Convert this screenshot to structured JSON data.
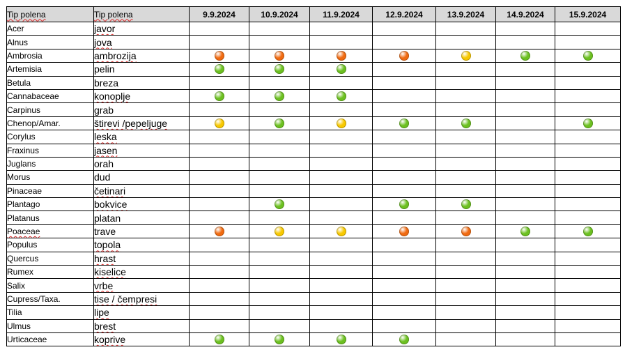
{
  "colors": {
    "high": "#f06a10",
    "moderate": "#f7c800",
    "low": "#6cc020",
    "header_bg": "#d9d9d9",
    "spellcheck_underline": "#e03030"
  },
  "table": {
    "header": {
      "latin_label": "Tip polena",
      "local_label": "Tip polena",
      "dates": [
        "9.9.2024",
        "10.9.2024",
        "11.9.2024",
        "12.9.2024",
        "13.9.2024",
        "14.9.2024",
        "15.9.2024"
      ]
    },
    "rows": [
      {
        "latin": "Acer",
        "local": "javor",
        "levels": [
          "",
          "",
          "",
          "",
          "",
          "",
          ""
        ]
      },
      {
        "latin": "Alnus",
        "local": "jova",
        "levels": [
          "",
          "",
          "",
          "",
          "",
          "",
          ""
        ]
      },
      {
        "latin": "Ambrosia",
        "local": "ambrozija",
        "levels": [
          "high",
          "high",
          "high",
          "high",
          "moderate",
          "low",
          "low"
        ]
      },
      {
        "latin": "Artemisia",
        "local": "pelin",
        "levels": [
          "low",
          "low",
          "low",
          "",
          "",
          "",
          ""
        ]
      },
      {
        "latin": "Betula",
        "local": "breza",
        "levels": [
          "",
          "",
          "",
          "",
          "",
          "",
          ""
        ]
      },
      {
        "latin": "Cannabaceae",
        "local": "konoplje",
        "levels": [
          "low",
          "low",
          "low",
          "",
          "",
          "",
          ""
        ]
      },
      {
        "latin": "Carpinus",
        "local": "grab",
        "levels": [
          "",
          "",
          "",
          "",
          "",
          "",
          ""
        ]
      },
      {
        "latin": "Chenop/Amar.",
        "local": "štirevi /pepeljuge",
        "levels": [
          "moderate",
          "low",
          "moderate",
          "low",
          "low",
          "",
          "low"
        ]
      },
      {
        "latin": "Corylus",
        "local": "leska",
        "levels": [
          "",
          "",
          "",
          "",
          "",
          "",
          ""
        ]
      },
      {
        "latin": "Fraxinus",
        "local": "jasen",
        "levels": [
          "",
          "",
          "",
          "",
          "",
          "",
          ""
        ]
      },
      {
        "latin": "Juglans",
        "local": "orah",
        "levels": [
          "",
          "",
          "",
          "",
          "",
          "",
          ""
        ]
      },
      {
        "latin": "Morus",
        "local": "dud",
        "levels": [
          "",
          "",
          "",
          "",
          "",
          "",
          ""
        ]
      },
      {
        "latin": "Pinaceae",
        "local": "četinari",
        "levels": [
          "",
          "",
          "",
          "",
          "",
          "",
          ""
        ]
      },
      {
        "latin": "Plantago",
        "local": "bokvice",
        "levels": [
          "",
          "low",
          "",
          "low",
          "low",
          "",
          ""
        ]
      },
      {
        "latin": "Platanus",
        "local": "platan",
        "levels": [
          "",
          "",
          "",
          "",
          "",
          "",
          ""
        ]
      },
      {
        "latin": "Poaceae",
        "local": "trave",
        "levels": [
          "high",
          "moderate",
          "moderate",
          "high",
          "high",
          "low",
          "low"
        ]
      },
      {
        "latin": "Populus",
        "local": "topola",
        "levels": [
          "",
          "",
          "",
          "",
          "",
          "",
          ""
        ]
      },
      {
        "latin": "Quercus",
        "local": "hrast",
        "levels": [
          "",
          "",
          "",
          "",
          "",
          "",
          ""
        ]
      },
      {
        "latin": "Rumex",
        "local": "kiselice",
        "levels": [
          "",
          "",
          "",
          "",
          "",
          "",
          ""
        ]
      },
      {
        "latin": "Salix",
        "local": "vrbe",
        "levels": [
          "",
          "",
          "",
          "",
          "",
          "",
          ""
        ]
      },
      {
        "latin": "Cupress/Taxa.",
        "local": "tise / čempresi",
        "levels": [
          "",
          "",
          "",
          "",
          "",
          "",
          ""
        ]
      },
      {
        "latin": "Tilia",
        "local": "lipe",
        "levels": [
          "",
          "",
          "",
          "",
          "",
          "",
          ""
        ]
      },
      {
        "latin": "Ulmus",
        "local": "brest",
        "levels": [
          "",
          "",
          "",
          "",
          "",
          "",
          ""
        ]
      },
      {
        "latin": "Urticaceae",
        "local": "koprive",
        "levels": [
          "low",
          "low",
          "low",
          "low",
          "",
          "",
          ""
        ]
      }
    ]
  }
}
